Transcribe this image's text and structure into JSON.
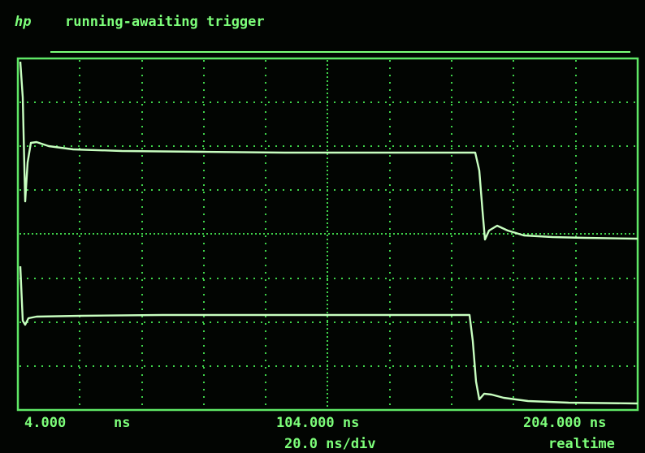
{
  "header": {
    "logo": "hp",
    "status": "running-awaiting trigger"
  },
  "footer": {
    "left_value": "4.000",
    "left_unit": "ns",
    "center": "104.000 ns",
    "center_sub": "20.0 ns/div",
    "right": "204.000 ns",
    "right_sub": "realtime"
  }
}
